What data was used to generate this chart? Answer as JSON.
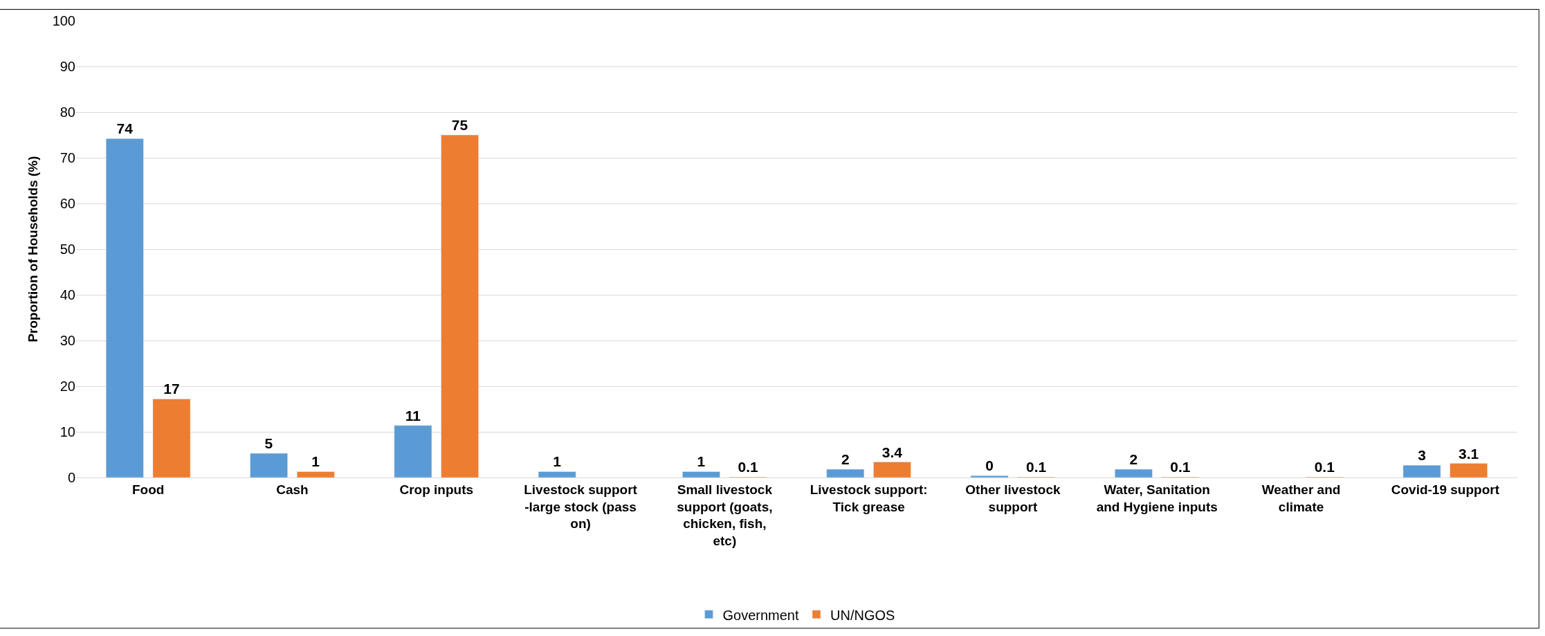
{
  "chart_data": {
    "type": "bar",
    "ylabel": "Proportion of Households (%)",
    "categories": [
      "Food",
      "Cash",
      "Crop inputs",
      "Livestock support -large stock (pass on)",
      "Small livestock support (goats, chicken, fish, etc)",
      "Livestock support: Tick grease",
      "Other livestock support",
      "Water, Sanitation and Hygiene inputs",
      "Weather and climate",
      "Covid-19 support"
    ],
    "series": [
      {
        "name": "Government",
        "color": "#5b9bd5",
        "values": [
          74.2,
          5.3,
          11.4,
          1.3,
          1.3,
          1.8,
          0.4,
          1.8,
          null,
          2.7
        ],
        "value_labels": [
          "74",
          "5",
          "11",
          "1",
          "1",
          "2",
          "0",
          "2",
          null,
          "3"
        ]
      },
      {
        "name": "UN/NGOS",
        "color": "#ed7d31",
        "values": [
          17.2,
          1.3,
          75,
          null,
          0.1,
          3.4,
          0.1,
          0.1,
          0.1,
          3.1
        ],
        "value_labels": [
          "17",
          "1",
          "75",
          null,
          "0.1",
          "3.4",
          "0.1",
          "0.1",
          "0.1",
          "3.1"
        ]
      }
    ],
    "ylim": [
      0,
      100
    ],
    "yticks": [
      0,
      10,
      20,
      30,
      40,
      50,
      60,
      70,
      80,
      90,
      100
    ],
    "grid": "y",
    "legend": "bottom"
  }
}
